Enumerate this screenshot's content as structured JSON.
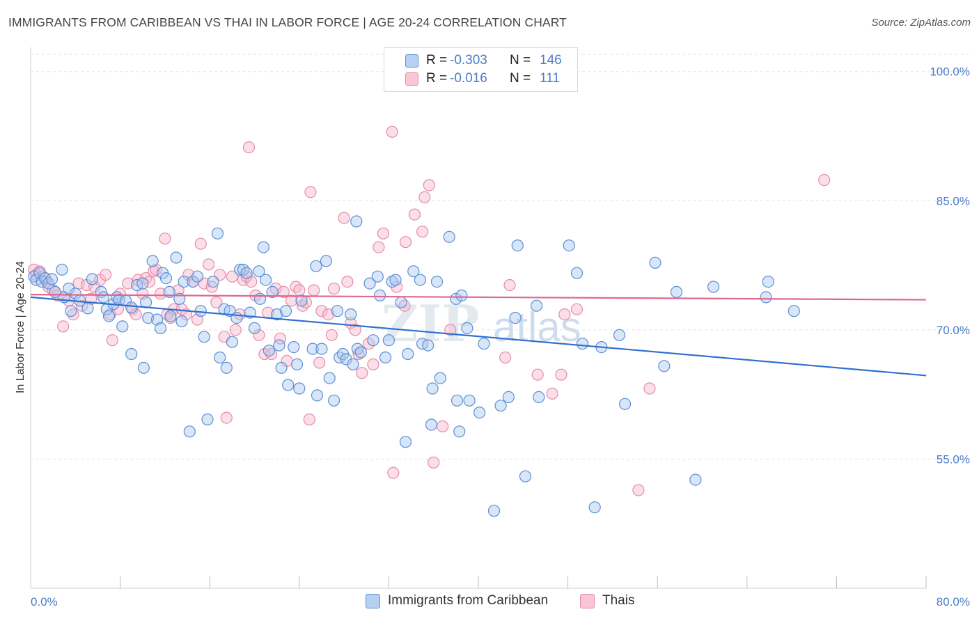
{
  "header": {
    "title": "IMMIGRANTS FROM CARIBBEAN VS THAI IN LABOR FORCE | AGE 20-24 CORRELATION CHART",
    "source": "Source: ZipAtlas.com"
  },
  "watermark": "ZIPatlas",
  "legend_top": {
    "rows": [
      {
        "r_label": "R =",
        "r_value": "-0.303",
        "n_label": "N =",
        "n_value": "146"
      },
      {
        "r_label": "R =",
        "r_value": "-0.016",
        "n_label": "N =",
        "n_value": "111"
      }
    ]
  },
  "legend_bottom": {
    "items": [
      {
        "label": "Immigrants from Caribbean"
      },
      {
        "label": "Thais"
      }
    ]
  },
  "colors": {
    "blue_fill": "#a9c8f0",
    "blue_stroke": "#5b8fd6",
    "blue_line": "#2f6fcf",
    "pink_fill": "#f6b8cb",
    "pink_stroke": "#e88aa8",
    "pink_line": "#e0668f",
    "tick_text": "#4a7cc8",
    "grid": "#e2e2e2"
  },
  "chart_data": {
    "type": "scatter",
    "title": "IMMIGRANTS FROM CARIBBEAN VS THAI IN LABOR FORCE | AGE 20-24 CORRELATION CHART",
    "xlabel": "",
    "ylabel": "In Labor Force | Age 20-24",
    "xlim": [
      0,
      80
    ],
    "ylim": [
      40,
      102
    ],
    "x_tick_labels": [
      "0.0%",
      "80.0%"
    ],
    "y_ticks": [
      55,
      70,
      85,
      100
    ],
    "y_tick_labels": [
      "55.0%",
      "70.0%",
      "85.0%",
      "100.0%"
    ],
    "grid": true,
    "legend_placement": "top-center",
    "series": [
      {
        "name": "Immigrants from Caribbean",
        "color": "#5b8fd6",
        "trend": {
          "x": [
            0,
            80
          ],
          "y": [
            73.8,
            64.7
          ]
        },
        "points": [
          [
            0.3,
            76.2
          ],
          [
            0.5,
            75.8
          ],
          [
            0.8,
            76.6
          ],
          [
            1.0,
            75.6
          ],
          [
            1.3,
            76.0
          ],
          [
            1.6,
            75.4
          ],
          [
            1.9,
            75.9
          ],
          [
            2.2,
            74.4
          ],
          [
            2.8,
            77.0
          ],
          [
            3.0,
            73.8
          ],
          [
            3.4,
            74.8
          ],
          [
            3.6,
            72.2
          ],
          [
            4.0,
            74.2
          ],
          [
            4.4,
            73.4
          ],
          [
            5.1,
            72.5
          ],
          [
            5.5,
            75.9
          ],
          [
            6.3,
            74.4
          ],
          [
            6.5,
            73.8
          ],
          [
            6.8,
            72.4
          ],
          [
            7.0,
            71.6
          ],
          [
            7.4,
            73.0
          ],
          [
            7.7,
            73.8
          ],
          [
            7.9,
            73.5
          ],
          [
            8.2,
            70.4
          ],
          [
            8.5,
            73.4
          ],
          [
            9.0,
            72.6
          ],
          [
            9.0,
            67.2
          ],
          [
            9.5,
            75.2
          ],
          [
            10.0,
            75.4
          ],
          [
            10.1,
            65.6
          ],
          [
            10.3,
            73.2
          ],
          [
            10.5,
            71.4
          ],
          [
            10.9,
            78.0
          ],
          [
            11.3,
            71.2
          ],
          [
            11.6,
            70.2
          ],
          [
            11.8,
            76.6
          ],
          [
            12.1,
            76.0
          ],
          [
            12.4,
            74.4
          ],
          [
            12.5,
            71.6
          ],
          [
            13.0,
            78.4
          ],
          [
            13.3,
            73.6
          ],
          [
            13.5,
            71.0
          ],
          [
            13.7,
            75.6
          ],
          [
            14.2,
            58.2
          ],
          [
            14.5,
            75.6
          ],
          [
            14.9,
            76.2
          ],
          [
            15.2,
            72.2
          ],
          [
            15.5,
            69.2
          ],
          [
            15.8,
            59.6
          ],
          [
            16.3,
            75.6
          ],
          [
            16.7,
            81.2
          ],
          [
            16.9,
            66.8
          ],
          [
            17.3,
            72.4
          ],
          [
            17.5,
            65.6
          ],
          [
            17.8,
            72.2
          ],
          [
            18.0,
            68.6
          ],
          [
            18.4,
            71.4
          ],
          [
            18.7,
            77.0
          ],
          [
            19.0,
            77.0
          ],
          [
            19.3,
            76.6
          ],
          [
            19.6,
            72.0
          ],
          [
            20.0,
            70.2
          ],
          [
            20.4,
            76.8
          ],
          [
            20.5,
            73.6
          ],
          [
            20.8,
            79.6
          ],
          [
            21.0,
            75.8
          ],
          [
            21.3,
            67.6
          ],
          [
            21.6,
            74.4
          ],
          [
            22.0,
            71.8
          ],
          [
            22.2,
            68.2
          ],
          [
            22.4,
            65.6
          ],
          [
            22.8,
            72.2
          ],
          [
            23.0,
            63.6
          ],
          [
            23.5,
            68.0
          ],
          [
            23.8,
            66.0
          ],
          [
            24.0,
            63.2
          ],
          [
            24.2,
            73.4
          ],
          [
            25.2,
            67.8
          ],
          [
            25.5,
            77.4
          ],
          [
            25.6,
            62.4
          ],
          [
            26.0,
            67.8
          ],
          [
            26.4,
            78.0
          ],
          [
            26.7,
            64.4
          ],
          [
            27.1,
            61.8
          ],
          [
            27.4,
            72.2
          ],
          [
            27.6,
            66.8
          ],
          [
            27.9,
            67.2
          ],
          [
            28.2,
            66.6
          ],
          [
            28.6,
            71.8
          ],
          [
            28.8,
            66.0
          ],
          [
            29.1,
            82.6
          ],
          [
            29.2,
            67.8
          ],
          [
            29.5,
            67.4
          ],
          [
            30.3,
            75.4
          ],
          [
            30.6,
            68.8
          ],
          [
            31.0,
            76.2
          ],
          [
            31.2,
            74.0
          ],
          [
            31.7,
            66.8
          ],
          [
            32.0,
            68.8
          ],
          [
            32.3,
            75.6
          ],
          [
            32.6,
            75.8
          ],
          [
            33.1,
            73.2
          ],
          [
            33.5,
            57.0
          ],
          [
            33.7,
            67.2
          ],
          [
            34.2,
            76.8
          ],
          [
            34.8,
            75.8
          ],
          [
            35.0,
            68.4
          ],
          [
            35.5,
            68.2
          ],
          [
            35.8,
            59.0
          ],
          [
            35.9,
            63.2
          ],
          [
            36.3,
            75.6
          ],
          [
            36.6,
            64.4
          ],
          [
            37.4,
            80.8
          ],
          [
            38.0,
            73.6
          ],
          [
            38.1,
            61.8
          ],
          [
            38.3,
            58.2
          ],
          [
            38.5,
            74.0
          ],
          [
            39.0,
            70.2
          ],
          [
            39.2,
            61.8
          ],
          [
            40.1,
            60.4
          ],
          [
            40.5,
            68.4
          ],
          [
            41.4,
            49.0
          ],
          [
            42.0,
            61.2
          ],
          [
            42.7,
            62.2
          ],
          [
            43.3,
            71.4
          ],
          [
            43.5,
            79.8
          ],
          [
            44.2,
            53.0
          ],
          [
            45.2,
            72.8
          ],
          [
            45.4,
            62.2
          ],
          [
            48.1,
            79.8
          ],
          [
            48.8,
            76.6
          ],
          [
            49.3,
            68.4
          ],
          [
            50.4,
            49.4
          ],
          [
            51.0,
            68.0
          ],
          [
            52.6,
            69.4
          ],
          [
            53.1,
            61.4
          ],
          [
            55.8,
            77.8
          ],
          [
            56.6,
            65.8
          ],
          [
            57.7,
            74.4
          ],
          [
            59.4,
            52.6
          ],
          [
            61.0,
            75.0
          ],
          [
            65.7,
            73.8
          ],
          [
            65.9,
            75.6
          ],
          [
            68.2,
            72.2
          ]
        ]
      },
      {
        "name": "Thais",
        "color": "#e88aa8",
        "trend": {
          "x": [
            0,
            80
          ],
          "y": [
            74.1,
            73.5
          ]
        },
        "points": [
          [
            0.3,
            77.0
          ],
          [
            0.5,
            76.4
          ],
          [
            0.8,
            76.8
          ],
          [
            1.1,
            76.2
          ],
          [
            1.4,
            75.6
          ],
          [
            1.6,
            75.0
          ],
          [
            2.0,
            74.6
          ],
          [
            2.4,
            74.0
          ],
          [
            2.9,
            70.4
          ],
          [
            3.4,
            73.4
          ],
          [
            3.8,
            71.8
          ],
          [
            4.3,
            75.4
          ],
          [
            4.6,
            72.8
          ],
          [
            5.0,
            75.2
          ],
          [
            5.4,
            73.6
          ],
          [
            5.7,
            75.0
          ],
          [
            6.2,
            75.8
          ],
          [
            6.7,
            76.4
          ],
          [
            7.1,
            71.8
          ],
          [
            7.3,
            68.8
          ],
          [
            7.8,
            72.4
          ],
          [
            8.0,
            74.2
          ],
          [
            8.7,
            75.4
          ],
          [
            9.1,
            72.4
          ],
          [
            9.4,
            71.8
          ],
          [
            9.6,
            75.8
          ],
          [
            10.0,
            74.2
          ],
          [
            10.3,
            76.0
          ],
          [
            10.6,
            75.6
          ],
          [
            11.0,
            76.8
          ],
          [
            11.2,
            77.0
          ],
          [
            11.6,
            74.2
          ],
          [
            12.0,
            80.6
          ],
          [
            12.2,
            71.8
          ],
          [
            12.5,
            71.4
          ],
          [
            12.8,
            72.4
          ],
          [
            13.2,
            74.6
          ],
          [
            13.5,
            72.4
          ],
          [
            13.9,
            71.8
          ],
          [
            14.1,
            76.4
          ],
          [
            14.5,
            75.6
          ],
          [
            14.9,
            71.2
          ],
          [
            15.2,
            80.0
          ],
          [
            15.5,
            75.4
          ],
          [
            15.9,
            77.6
          ],
          [
            16.2,
            75.0
          ],
          [
            16.6,
            73.2
          ],
          [
            16.9,
            76.4
          ],
          [
            17.3,
            69.2
          ],
          [
            17.5,
            59.8
          ],
          [
            18.0,
            76.2
          ],
          [
            18.3,
            70.0
          ],
          [
            18.7,
            71.8
          ],
          [
            19.0,
            75.8
          ],
          [
            19.3,
            76.2
          ],
          [
            19.5,
            91.2
          ],
          [
            19.7,
            75.6
          ],
          [
            20.1,
            74.0
          ],
          [
            20.4,
            69.4
          ],
          [
            20.9,
            67.2
          ],
          [
            21.2,
            72.0
          ],
          [
            21.5,
            67.2
          ],
          [
            21.9,
            74.8
          ],
          [
            22.3,
            69.0
          ],
          [
            22.6,
            74.4
          ],
          [
            22.9,
            66.4
          ],
          [
            23.3,
            73.4
          ],
          [
            23.7,
            75.0
          ],
          [
            24.0,
            74.6
          ],
          [
            24.3,
            72.8
          ],
          [
            24.6,
            73.2
          ],
          [
            24.9,
            59.6
          ],
          [
            25.0,
            86.0
          ],
          [
            25.3,
            74.6
          ],
          [
            25.8,
            66.2
          ],
          [
            26.0,
            72.2
          ],
          [
            26.6,
            71.8
          ],
          [
            26.9,
            69.4
          ],
          [
            27.1,
            74.8
          ],
          [
            28.0,
            83.0
          ],
          [
            28.3,
            75.6
          ],
          [
            28.6,
            70.8
          ],
          [
            29.0,
            70.0
          ],
          [
            29.3,
            67.2
          ],
          [
            29.6,
            65.0
          ],
          [
            30.2,
            68.4
          ],
          [
            30.6,
            66.0
          ],
          [
            31.1,
            79.6
          ],
          [
            31.5,
            81.2
          ],
          [
            32.3,
            93.0
          ],
          [
            32.4,
            53.4
          ],
          [
            32.7,
            75.0
          ],
          [
            33.5,
            80.2
          ],
          [
            34.3,
            83.4
          ],
          [
            35.0,
            81.4
          ],
          [
            35.2,
            85.4
          ],
          [
            35.6,
            86.8
          ],
          [
            36.0,
            54.6
          ],
          [
            36.8,
            58.8
          ],
          [
            37.5,
            70.0
          ],
          [
            42.4,
            66.8
          ],
          [
            42.8,
            75.2
          ],
          [
            45.3,
            64.8
          ],
          [
            46.6,
            62.6
          ],
          [
            47.4,
            64.8
          ],
          [
            47.7,
            71.8
          ],
          [
            48.8,
            72.4
          ],
          [
            54.3,
            51.4
          ],
          [
            55.3,
            63.2
          ],
          [
            70.9,
            87.4
          ],
          [
            33.4,
            72.8
          ]
        ]
      }
    ]
  }
}
